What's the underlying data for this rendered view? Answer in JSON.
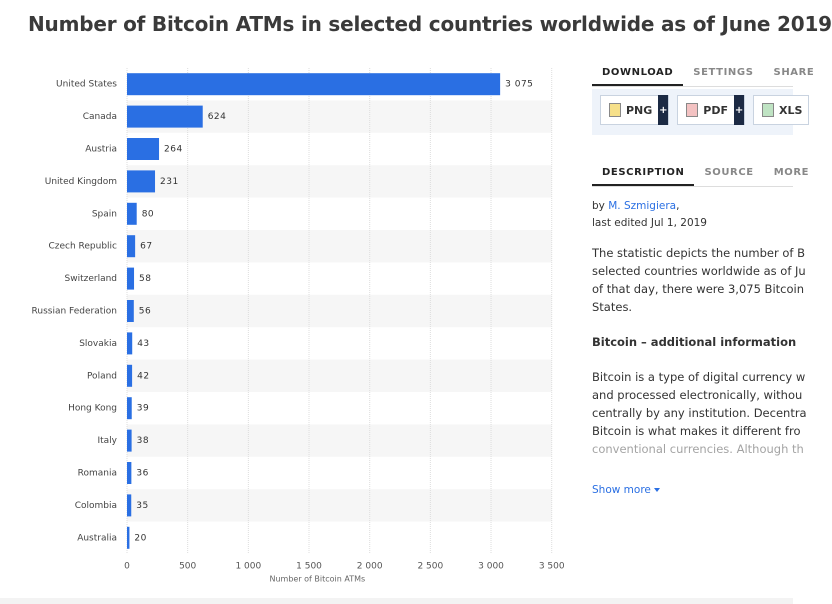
{
  "chart_data": {
    "type": "bar",
    "orientation": "horizontal",
    "title": "Number of Bitcoin ATMs in selected countries worldwide as of June 2019",
    "categories": [
      "United States",
      "Canada",
      "Austria",
      "United Kingdom",
      "Spain",
      "Czech Republic",
      "Switzerland",
      "Russian Federation",
      "Slovakia",
      "Poland",
      "Hong Kong",
      "Italy",
      "Romania",
      "Colombia",
      "Australia"
    ],
    "values": [
      3075,
      624,
      264,
      231,
      80,
      67,
      58,
      56,
      43,
      42,
      39,
      38,
      36,
      35,
      20
    ],
    "value_labels": [
      "3 075",
      "624",
      "264",
      "231",
      "80",
      "67",
      "58",
      "56",
      "43",
      "42",
      "39",
      "38",
      "36",
      "35",
      "20"
    ],
    "color": "#2a6fe3",
    "xlim": [
      0,
      3500
    ],
    "xticks": [
      0,
      500,
      {
        "value": 1000,
        "label": "1 000"
      },
      {
        "value": 1500,
        "label": "1 500"
      },
      {
        "value": 2000,
        "label": "2 000"
      },
      {
        "value": 2500,
        "label": "2 500"
      },
      {
        "value": 3000,
        "label": "3 000"
      },
      {
        "value": 3500,
        "label": "3 500"
      }
    ],
    "x_label": "Number of Bitcoin ATMs",
    "grid": true
  },
  "download": {
    "tabs": [
      "DOWNLOAD",
      "SETTINGS",
      "SHARE"
    ],
    "buttons": [
      "PNG",
      "PDF",
      "XLS"
    ],
    "plus": "+"
  },
  "description": {
    "tabs": [
      "DESCRIPTION",
      "SOURCE",
      "MORE"
    ],
    "author_line": [
      "by",
      "M. Szmigiera",
      ","
    ],
    "edited": "last edited Jul 1, 2019",
    "paragraph1": [
      "The statistic depicts the number of B",
      "selected countries worldwide as of Ju",
      "of that day, there were 3,075 Bitcoin",
      "States."
    ],
    "heading": "Bitcoin – additional information",
    "paragraph2": [
      "Bitcoin is a type of digital currency w",
      "and processed electronically, withou",
      "centrally by any institution. Decentra",
      "Bitcoin is what makes it different fro",
      "conventional currencies. Although th"
    ],
    "show_more": "Show more"
  }
}
